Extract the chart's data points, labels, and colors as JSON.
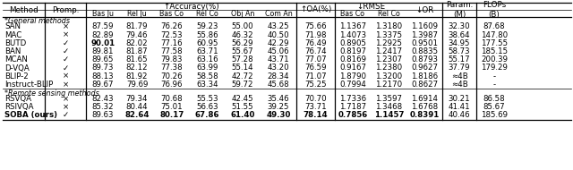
{
  "section1_label": "*General methods",
  "section2_label": "*Remote sensing methods",
  "rows": [
    [
      "SAN",
      "×",
      "87.59",
      "81.79",
      "76.26",
      "59.23",
      "55.00",
      "43.25",
      "75.66",
      "1.1367",
      "1.3180",
      "1.1609",
      "32.30",
      "87.68",
      false,
      false
    ],
    [
      "MAC",
      "×",
      "82.89",
      "79.46",
      "72.53",
      "55.86",
      "46.32",
      "40.50",
      "71.98",
      "1.4073",
      "1.3375",
      "1.3987",
      "38.64",
      "147.80",
      false,
      false
    ],
    [
      "BUTD",
      "✓",
      "90.01",
      "82.02",
      "77.16",
      "60.95",
      "56.29",
      "42.29",
      "76.49",
      "0.8905",
      "1.2925",
      "0.9501",
      "34.95",
      "177.55",
      true,
      false
    ],
    [
      "BAN",
      "✓",
      "89.81",
      "81.87",
      "77.58",
      "63.71",
      "55.67",
      "45.06",
      "76.74",
      "0.8197",
      "1.2417",
      "0.8835",
      "58.73",
      "185.15",
      false,
      false
    ],
    [
      "MCAN",
      "✓",
      "89.65",
      "81.65",
      "79.83",
      "63.16",
      "57.28",
      "43.71",
      "77.07",
      "0.8169",
      "1.2307",
      "0.8793",
      "55.17",
      "200.39",
      false,
      false
    ],
    [
      "D-VQA",
      "✓",
      "89.73",
      "82.12",
      "77.38",
      "63.99",
      "55.14",
      "43.20",
      "76.59",
      "0.9167",
      "1.2380",
      "0.9627",
      "37.79",
      "179.29",
      false,
      false
    ],
    [
      "BLIP-2",
      "×",
      "88.13",
      "81.92",
      "70.26",
      "58.58",
      "42.72",
      "28.34",
      "71.07",
      "1.8790",
      "1.3200",
      "1.8186",
      "≈4B",
      "-",
      false,
      false
    ],
    [
      "Instruct-BLIP",
      "×",
      "89.67",
      "79.69",
      "76.96",
      "63.34",
      "59.72",
      "45.68",
      "75.25",
      "0.7994",
      "1.2170",
      "0.8627",
      "≈4B",
      "-",
      false,
      false
    ]
  ],
  "rows2": [
    [
      "RSVQA",
      "×",
      "82.43",
      "79.34",
      "70.68",
      "55.53",
      "42.45",
      "35.46",
      "70.70",
      "1.7336",
      "1.3597",
      "1.6914",
      "30.21",
      "86.58",
      false,
      false
    ],
    [
      "RSIVQA",
      "×",
      "85.32",
      "80.44",
      "75.01",
      "56.63",
      "51.55",
      "39.25",
      "73.71",
      "1.7187",
      "1.3468",
      "1.6768",
      "41.41",
      "85.67",
      false,
      false
    ],
    [
      "SOBA (ours)",
      "✓",
      "89.63",
      "82.64",
      "80.17",
      "67.86",
      "61.40",
      "49.30",
      "78.14",
      "0.7856",
      "1.1457",
      "0.8391",
      "40.46",
      "185.69",
      false,
      true
    ]
  ],
  "bg_color": "#ffffff",
  "text_color": "#000000"
}
